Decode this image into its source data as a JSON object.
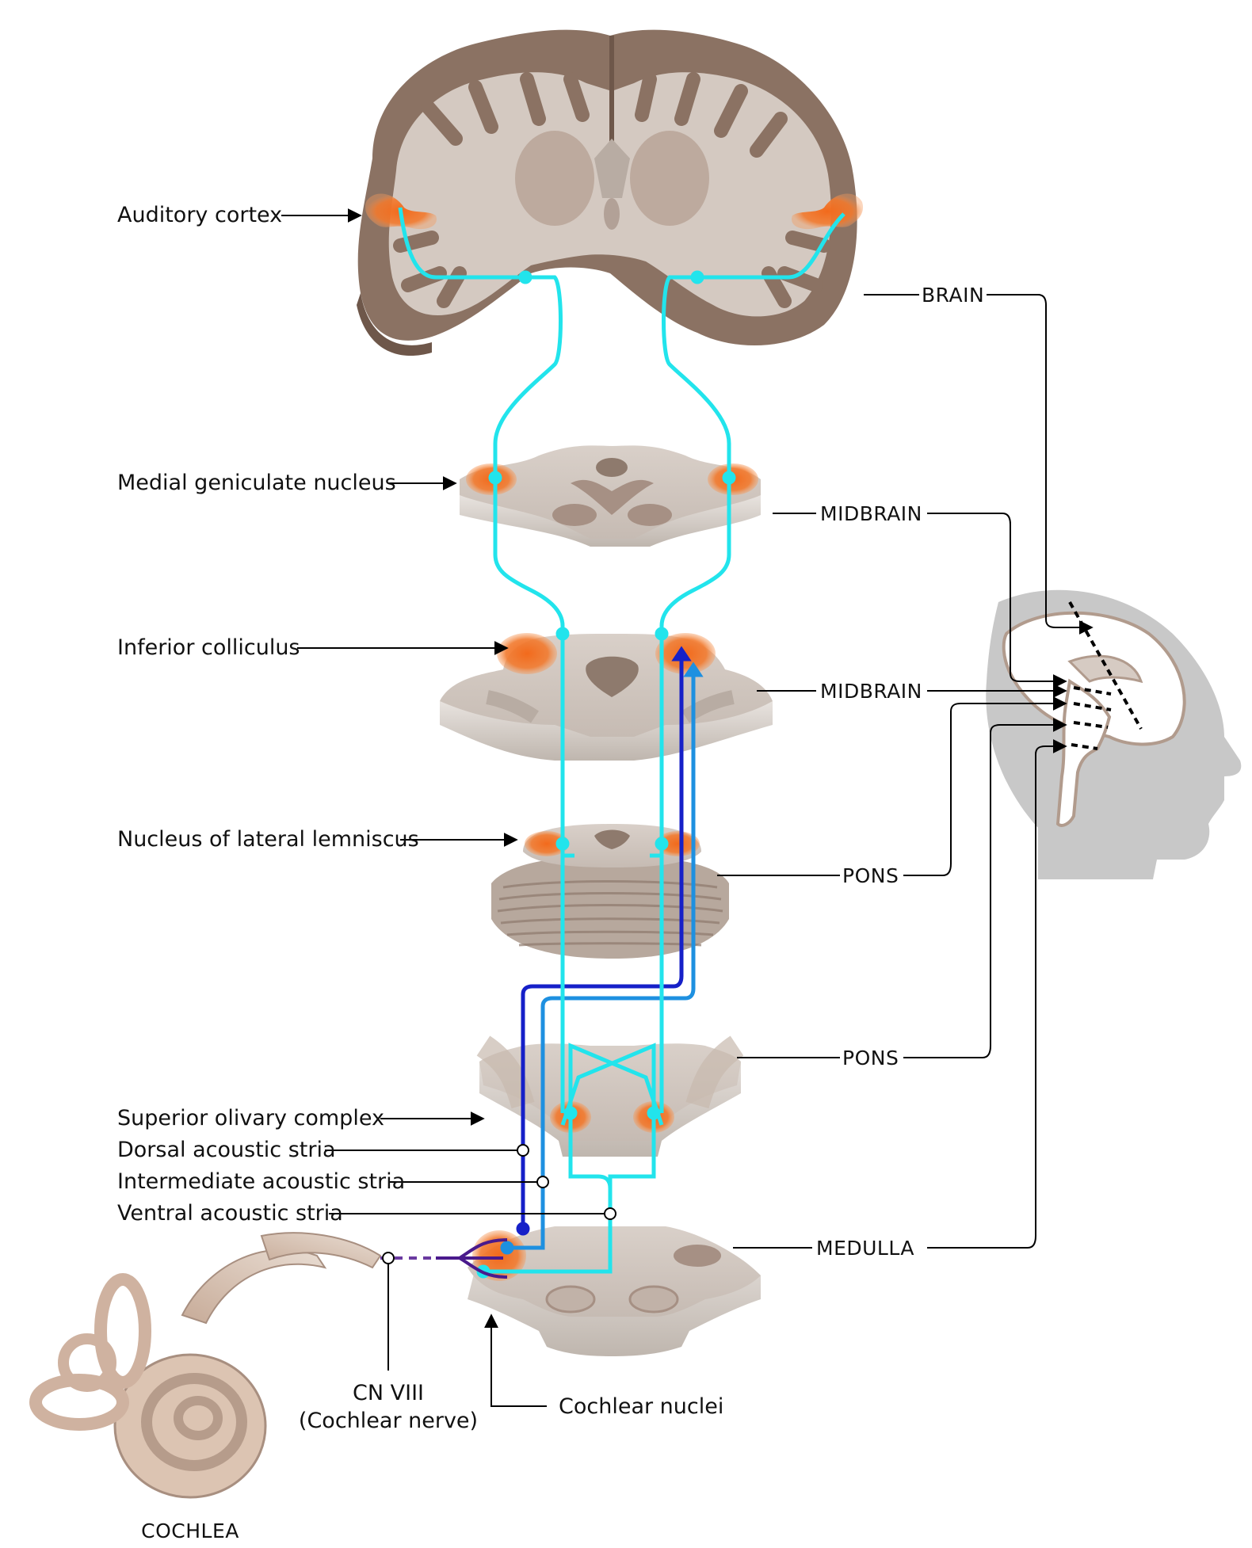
{
  "labels": {
    "auditory_cortex": "Auditory cortex",
    "medial_geniculate": "Medial geniculate nucleus",
    "inferior_colliculus": "Inferior colliculus",
    "nucleus_lateral_lemniscus": "Nucleus of lateral lemniscus",
    "superior_olivary": "Superior olivary complex",
    "dorsal_stria": "Dorsal acoustic stria",
    "intermediate_stria": "Intermediate acoustic stria",
    "ventral_stria": "Ventral acoustic stria",
    "cn_viii_line1": "CN VIII",
    "cn_viii_line2": "(Cochlear nerve)",
    "cochlear_nuclei": "Cochlear nuclei",
    "cochlea": "COCHLEA"
  },
  "levels": {
    "brain": "BRAIN",
    "midbrain_upper": "MIDBRAIN",
    "midbrain_lower": "MIDBRAIN",
    "pons_upper": "PONS",
    "pons_lower": "PONS",
    "medulla": "MEDULLA"
  },
  "colors": {
    "pathway_cyan": "#22e4ec",
    "dorsal_stria": "#1620c8",
    "intermediate_stria": "#1e90e0",
    "cochlear_nerve": "#4a1a8c",
    "nucleus_orange": "#f06a1e",
    "tissue_gray": "#d6cdc6",
    "cortex_brown": "#8b7263",
    "head_gray": "#c8c8c8"
  }
}
